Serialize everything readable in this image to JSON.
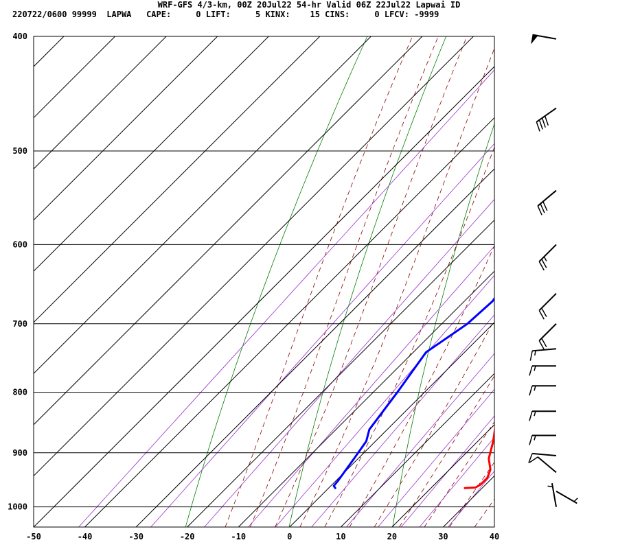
{
  "header": {
    "title": "WRF-GFS 4/3-km, 00Z 20Jul22 54-hr Valid 06Z 22Jul22 Lapwai ID",
    "subtitle": "220722/0600 99999  LAPWA   CAPE:     0 LIFT:     5 KINX:    15 CINS:     0 LFCV: -9999"
  },
  "chart_data": {
    "type": "line",
    "diagram": "skew-T log-p",
    "x_ticks": [
      -50,
      -40,
      -30,
      -20,
      -10,
      0,
      10,
      20,
      30,
      40
    ],
    "x_tick_labels": [
      "-50",
      "-40",
      "-30",
      "-20",
      "-10",
      "0",
      "10",
      "20",
      "30",
      "40"
    ],
    "y_ticks": [
      400,
      500,
      600,
      700,
      800,
      900,
      1000
    ],
    "y_tick_labels": [
      "400",
      "500",
      "600",
      "700",
      "800",
      "900",
      "1000"
    ],
    "ylim": [
      400,
      1040
    ],
    "xlim_at_bottom": [
      -50,
      40
    ],
    "y_scale": "log",
    "grid": true,
    "series": [
      {
        "key": "temperature",
        "color": "#ff0000",
        "points": [
          [
            964,
            26.6
          ],
          [
            963,
            28.6
          ],
          [
            957,
            29.0
          ],
          [
            945,
            29.0
          ],
          [
            930,
            28.0
          ],
          [
            910,
            25.5
          ],
          [
            880,
            23.0
          ],
          [
            840,
            19.0
          ],
          [
            800,
            14.0
          ],
          [
            760,
            10.0
          ],
          [
            700,
            4.0
          ],
          [
            650,
            0.0
          ],
          [
            615,
            -2.5
          ],
          [
            590,
            -5.0
          ],
          [
            560,
            -8.0
          ],
          [
            500,
            -12.7
          ],
          [
            460,
            -15.5
          ],
          [
            400,
            -22.0
          ]
        ]
      },
      {
        "key": "dewpoint",
        "color": "#0000ff",
        "points": [
          [
            964,
            1.3
          ],
          [
            960,
            0.6
          ],
          [
            950,
            0.4
          ],
          [
            910,
            -0.8
          ],
          [
            880,
            -1.8
          ],
          [
            860,
            -3.5
          ],
          [
            800,
            -5.3
          ],
          [
            740,
            -7.5
          ],
          [
            700,
            -5.0
          ],
          [
            670,
            -4.5
          ],
          [
            620,
            -6.7
          ],
          [
            570,
            -9.5
          ],
          [
            550,
            -12.0
          ],
          [
            500,
            -19.0
          ],
          [
            460,
            -27.8
          ],
          [
            400,
            -32.5
          ]
        ]
      }
    ],
    "isotherms_color": "#000000",
    "dry_adiabats_color": "#008000",
    "moist_adiabats_color": "#8b0000",
    "mixing_ratio_color": "#9932cc",
    "wind_barbs": [
      {
        "p": 402,
        "dir": 280,
        "kt": 50
      },
      {
        "p": 460,
        "dir": 235,
        "kt": 40
      },
      {
        "p": 540,
        "dir": 230,
        "kt": 30
      },
      {
        "p": 600,
        "dir": 225,
        "kt": 25
      },
      {
        "p": 660,
        "dir": 225,
        "kt": 20
      },
      {
        "p": 700,
        "dir": 225,
        "kt": 20
      },
      {
        "p": 735,
        "dir": 265,
        "kt": 15
      },
      {
        "p": 760,
        "dir": 270,
        "kt": 15
      },
      {
        "p": 790,
        "dir": 270,
        "kt": 15
      },
      {
        "p": 830,
        "dir": 270,
        "kt": 15
      },
      {
        "p": 870,
        "dir": 270,
        "kt": 15
      },
      {
        "p": 905,
        "dir": 275,
        "kt": 10
      },
      {
        "p": 935,
        "dir": 310,
        "kt": 10
      },
      {
        "p": 970,
        "dir": 120,
        "kt": 5
      },
      {
        "p": 1000,
        "dir": 350,
        "kt": 5
      }
    ]
  }
}
